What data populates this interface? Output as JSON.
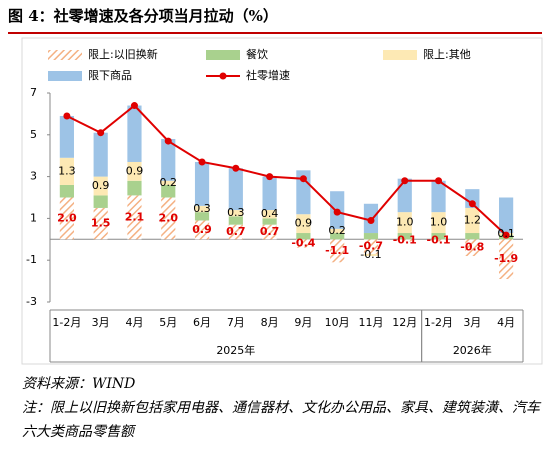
{
  "chart_data": {
    "type": "stacked-bar-line",
    "title": "图 4：社零增速及各分项当月拉动（%）",
    "categories": [
      "1-2月",
      "3月",
      "4月",
      "5月",
      "6月",
      "7月",
      "8月",
      "9月",
      "10月",
      "11月",
      "12月",
      "1-2月",
      "3月",
      "4月"
    ],
    "groups": [
      "2025年",
      "2026年"
    ],
    "ylim": [
      -3,
      7
    ],
    "yticks": [
      -3,
      -1,
      1,
      3,
      5,
      7
    ],
    "series": [
      {
        "name": "限上:以旧换新",
        "color": "#f4b183",
        "hatch": true,
        "label_color": "#e00000",
        "values": [
          2.0,
          1.5,
          2.1,
          2.0,
          0.9,
          0.7,
          0.7,
          -0.4,
          -1.1,
          -0.7,
          -0.1,
          -0.1,
          -0.8,
          -1.9
        ],
        "value_labels": [
          "2.0",
          "1.5",
          "2.1",
          "2.0",
          "0.9",
          "0.7",
          "0.7",
          "-0.4",
          "-1.1",
          "-0.7",
          "-0.1",
          "-0.1",
          "-0.8",
          "-1.9"
        ]
      },
      {
        "name": "餐饮",
        "color": "#a9d18e",
        "values": [
          0.6,
          0.6,
          0.7,
          0.6,
          0.4,
          0.4,
          0.3,
          0.3,
          0.3,
          0.3,
          0.3,
          0.3,
          0.3,
          0.2
        ]
      },
      {
        "name": "限上:其他",
        "color": "#fde9b4",
        "label_color": "#000000",
        "values": [
          1.3,
          0.9,
          0.9,
          0.2,
          0.3,
          0.3,
          0.4,
          0.9,
          0.2,
          -0.1,
          1.0,
          1.0,
          1.2,
          0.1
        ],
        "value_labels": [
          "1.3",
          "0.9",
          "0.9",
          "0.2",
          "0.3",
          "0.3",
          "0.4",
          "0.9",
          "0.2",
          "-0.1",
          "1.0",
          "1.0",
          "1.2",
          "0.1"
        ]
      },
      {
        "name": "限下商品",
        "color": "#9dc3e6",
        "values": [
          2.0,
          2.1,
          2.7,
          2.0,
          2.1,
          2.0,
          1.6,
          2.1,
          1.8,
          1.4,
          1.6,
          1.5,
          0.9,
          1.7
        ]
      },
      {
        "name": "社零增速",
        "type": "line",
        "color": "#e00000",
        "values": [
          5.9,
          5.1,
          6.4,
          4.7,
          3.7,
          3.4,
          3.0,
          2.9,
          1.3,
          0.9,
          2.8,
          2.8,
          1.7,
          0.2
        ]
      }
    ]
  },
  "source": "资料来源：WIND",
  "note": "注：限上以旧换新包括家用电器、通信器材、文化办公用品、家具、建筑装潢、汽车六大类商品零售额"
}
